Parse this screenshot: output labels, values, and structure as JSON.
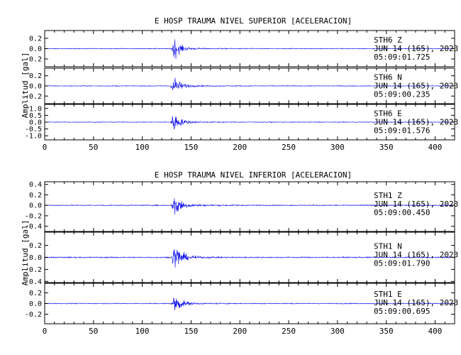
{
  "chart_data": [
    {
      "type": "line",
      "title": "E HOSP TRAUMA NIVEL SUPERIOR [ACELERACION]",
      "ylabel": "Amplitud [gal]",
      "xlim": [
        0,
        420
      ],
      "xticks": [
        0,
        50,
        100,
        150,
        200,
        250,
        300,
        350,
        400
      ],
      "event_time": 130,
      "series": [
        {
          "station": "STH6",
          "component": "Z",
          "date": "JUN 14 (165), 2023",
          "time": "05:09:01.725",
          "ylim": [
            -0.35,
            0.35
          ],
          "yticks": [
            -0.2,
            0.0,
            0.2
          ],
          "ytick_labels": [
            "-0.2",
            "0.0",
            "0.2"
          ],
          "noise": 0.012,
          "peak": 0.3
        },
        {
          "station": "STH6",
          "component": "N",
          "date": "JUN 14 (165), 2023",
          "time": "05:09:00.235",
          "ylim": [
            -0.35,
            0.35
          ],
          "yticks": [
            -0.2,
            0.0,
            0.2
          ],
          "ytick_labels": [
            "-0.2",
            "0.0",
            "0.2"
          ],
          "noise": 0.012,
          "peak": 0.3
        },
        {
          "station": "STH6",
          "component": "E",
          "date": "JUN 14 (165), 2023",
          "time": "05:09:01.576",
          "ylim": [
            -1.3,
            1.3
          ],
          "yticks": [
            -1.0,
            -0.5,
            0.0,
            0.5,
            1.0
          ],
          "ytick_labels": [
            "-1.0",
            "-0.5",
            "0.0",
            "0.5",
            "1.0"
          ],
          "noise": 0.04,
          "peak": 1.1
        }
      ]
    },
    {
      "type": "line",
      "title": "E HOSP TRAUMA NIVEL INFERIOR [ACELERACION]",
      "ylabel": "Amplitud [gal]",
      "xlim": [
        0,
        420
      ],
      "xticks": [
        0,
        50,
        100,
        150,
        200,
        250,
        300,
        350,
        400
      ],
      "event_time": 131,
      "series": [
        {
          "station": "STH1",
          "component": "Z",
          "date": "JUN 14 (165), 2023",
          "time": "05:09:00.450",
          "ylim": [
            -0.5,
            0.45
          ],
          "yticks": [
            -0.4,
            -0.2,
            0.0,
            0.2,
            0.4
          ],
          "ytick_labels": [
            "-0.4",
            "-0.2",
            "0.0",
            "0.2",
            "0.4"
          ],
          "noise": 0.015,
          "peak": 0.4
        },
        {
          "station": "STH1",
          "component": "N",
          "date": "JUN 14 (165), 2023",
          "time": "05:09:01.790",
          "ylim": [
            -0.42,
            0.42
          ],
          "yticks": [
            -0.4,
            -0.2,
            0.0,
            0.2
          ],
          "ytick_labels": [
            "-0.4",
            "-0.2",
            "0.0",
            "0.2"
          ],
          "noise": 0.015,
          "peak": 0.38
        },
        {
          "station": "STH1",
          "component": "E",
          "date": "JUN 14 (165), 2023",
          "time": "05:09:00.695",
          "ylim": [
            -0.38,
            0.38
          ],
          "yticks": [
            -0.2,
            0.0,
            0.2
          ],
          "ytick_labels": [
            "-0.2",
            "0.0",
            "0.2"
          ],
          "noise": 0.013,
          "peak": 0.3
        }
      ]
    }
  ]
}
